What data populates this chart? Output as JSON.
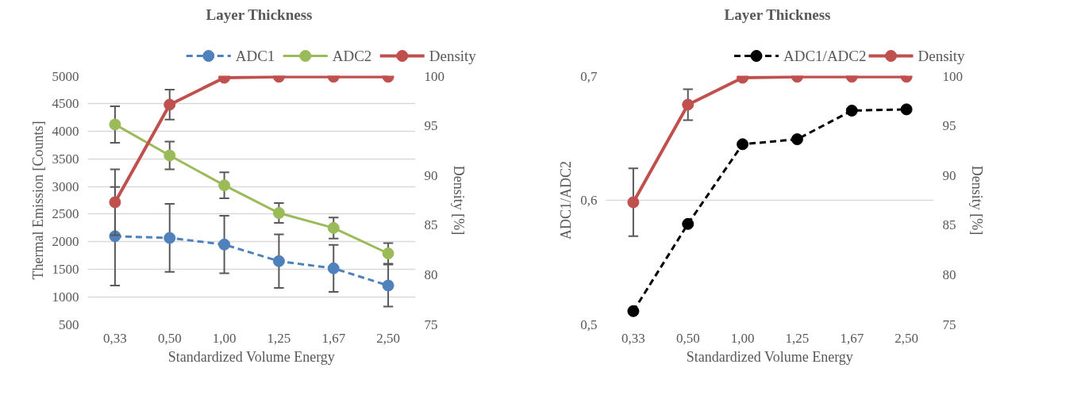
{
  "chart_data": [
    {
      "type": "line",
      "title": "Layer Thickness",
      "xlabel": "Standardized Volume Energy",
      "ylabel": "Thermal Emission [Counts]",
      "y2label": "Density [%]",
      "categories": [
        "0,33",
        "0,50",
        "1,00",
        "1,25",
        "1,67",
        "2,50"
      ],
      "ylim": [
        500,
        5000
      ],
      "yticks": [
        500,
        1000,
        1500,
        2000,
        2500,
        3000,
        3500,
        4000,
        4500,
        5000
      ],
      "y2lim": [
        75,
        100
      ],
      "y2ticks": [
        75,
        80,
        85,
        90,
        95,
        100
      ],
      "grid": "y",
      "legend": "top",
      "marker": "circle",
      "series": [
        {
          "name": "ADC1",
          "color": "#4f81bd",
          "line_style": "dashed",
          "values": [
            2100,
            2070,
            1950,
            1650,
            1520,
            1210
          ],
          "errors": [
            890,
            615,
            520,
            485,
            425,
            380
          ]
        },
        {
          "name": "ADC2",
          "color": "#9bbb59",
          "line_style": "solid",
          "values": [
            4120,
            3560,
            3020,
            2520,
            2250,
            1790
          ],
          "errors": [
            330,
            250,
            235,
            180,
            190,
            185
          ]
        },
        {
          "name": "Density",
          "color": "#c0504d",
          "line_style": "solid",
          "axis": "y2",
          "values": [
            87.3,
            97.1,
            99.8,
            99.9,
            99.9,
            99.9
          ],
          "errors": [
            3.3,
            1.5,
            null,
            null,
            null,
            null
          ]
        }
      ]
    },
    {
      "type": "line",
      "title": "Layer Thickness",
      "xlabel": "Standardized Volume Energy",
      "ylabel": "ADC1/ADC2",
      "y2label": "Density [%]",
      "categories": [
        "0,33",
        "0,50",
        "1,00",
        "1,25",
        "1,67",
        "2,50"
      ],
      "ylim": [
        0.5,
        0.7
      ],
      "yticks": [
        {
          "value": 0.5,
          "label": "0,5"
        },
        {
          "value": 0.6,
          "label": "0,6"
        },
        {
          "value": 0.7,
          "label": "0,7"
        }
      ],
      "y2lim": [
        75,
        100
      ],
      "y2ticks": [
        75,
        80,
        85,
        90,
        95,
        100
      ],
      "grid": "y",
      "legend": "top",
      "marker": "circle",
      "series": [
        {
          "name": "ADC1/ADC2",
          "color": "#000000",
          "line_style": "dashed",
          "values": [
            0.511,
            0.581,
            0.645,
            0.649,
            0.672,
            0.673
          ]
        },
        {
          "name": "Density",
          "color": "#c0504d",
          "line_style": "solid",
          "axis": "y2",
          "values": [
            87.3,
            97.1,
            99.8,
            99.9,
            99.9,
            99.9
          ],
          "errors": [
            3.4,
            1.55,
            null,
            null,
            null,
            null
          ]
        }
      ]
    }
  ]
}
